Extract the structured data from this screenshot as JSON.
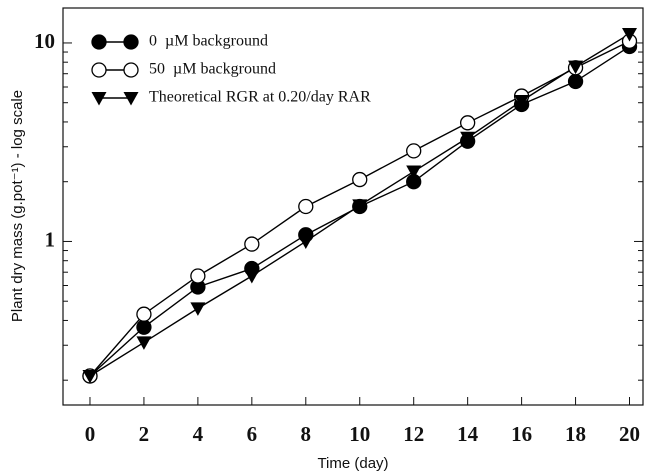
{
  "chart_data": {
    "type": "line",
    "x_label": "Time (day)",
    "y_label": "Plant dry mass (g.pot⁻¹) - log scale",
    "x": [
      0,
      2,
      4,
      6,
      8,
      10,
      12,
      14,
      16,
      18,
      20
    ],
    "series": [
      {
        "name": "0  µM background",
        "color": "#000000",
        "marker": "filled-circle",
        "values": [
          0.21,
          0.37,
          0.59,
          0.73,
          1.08,
          1.5,
          2.0,
          3.2,
          4.9,
          6.4,
          9.6
        ]
      },
      {
        "name": "50  µM background",
        "color": "#000000",
        "marker": "open-circle",
        "values": [
          0.21,
          0.43,
          0.67,
          0.97,
          1.5,
          2.05,
          2.86,
          3.96,
          5.4,
          7.5,
          10.2
        ]
      },
      {
        "name": "Theoretical RGR at 0.20/day RAR",
        "color": "#000000",
        "marker": "triangle-down",
        "values": [
          0.21,
          0.31,
          0.46,
          0.67,
          1.0,
          1.52,
          2.25,
          3.33,
          5.1,
          7.6,
          11.1
        ]
      }
    ],
    "xlim": [
      -1,
      20.5
    ],
    "xticks": [
      0,
      2,
      4,
      6,
      8,
      10,
      12,
      14,
      16,
      18,
      20
    ],
    "ylim": [
      0.15,
      15
    ],
    "yticks": [
      1,
      10
    ],
    "yminorticks": [
      0.2,
      0.3,
      0.4,
      0.5,
      0.6,
      0.7,
      0.8,
      0.9,
      2,
      3,
      4,
      5,
      6,
      7,
      8,
      9
    ],
    "log_y": true,
    "grid": false,
    "legend": "upper left"
  }
}
